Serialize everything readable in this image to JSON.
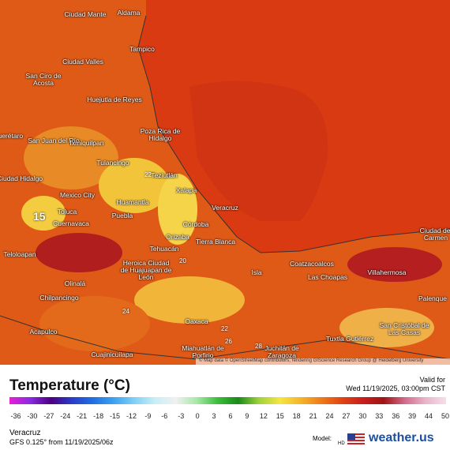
{
  "map": {
    "cities": [
      "Ciudad Mante",
      "Aldama",
      "Tampico",
      "Ciudad Valles",
      "San Ciro de Acosta",
      "Huejutla de Reyes",
      "Poza Rica de Hidalgo",
      "Querétaro",
      "San Juan del Río",
      "Ixmiquilpan",
      "Tulancingo",
      "Teziutlán",
      "Ciudad Hidalgo",
      "Mexico City",
      "Xalapa",
      "Huamantla",
      "Veracruz",
      "Toluca",
      "Puebla",
      "Cuernavaca",
      "Córdoba",
      "Orizaba",
      "Teloloapan",
      "Tehuacán",
      "Tierra Blanca",
      "Coatzacoalcos",
      "Heroica Ciudad de Huajuapan de León",
      "Isla",
      "Las Choapas",
      "Villahermosa",
      "Olinalá",
      "Chilpancingo",
      "Ciudad del Carmen",
      "Palenque",
      "Oaxaca",
      "Acapulco",
      "San Cristóbal de Las Casas",
      "Tuxtla Gutiérrez",
      "Juchitán de Zaragoza",
      "Miahuatlán de Porfirio",
      "Cuajinicuilapa"
    ],
    "contour_labels": [
      "15",
      "22",
      "20",
      "24",
      "22",
      "26",
      "28"
    ],
    "attribution": "© Map data © OpenStreetMap contributors, rendering GIScience Research Group @ Heidelberg University"
  },
  "legend": {
    "title": "Temperature (°C)",
    "valid_label": "Valid for",
    "valid_time": "Wed 11/19/2025, 03:00pm CST",
    "ticks": [
      -36,
      -30,
      -27,
      -24,
      -21,
      -18,
      -15,
      -12,
      -9,
      -6,
      -3,
      0,
      3,
      6,
      9,
      12,
      15,
      18,
      21,
      24,
      27,
      30,
      33,
      36,
      39,
      44,
      50
    ]
  },
  "footer": {
    "location": "Veracruz",
    "model_run": "GFS 0.125° from 11/19/2025/06z",
    "model_label": "Model:",
    "model_badge": "HD",
    "brand": "weather.us"
  }
}
